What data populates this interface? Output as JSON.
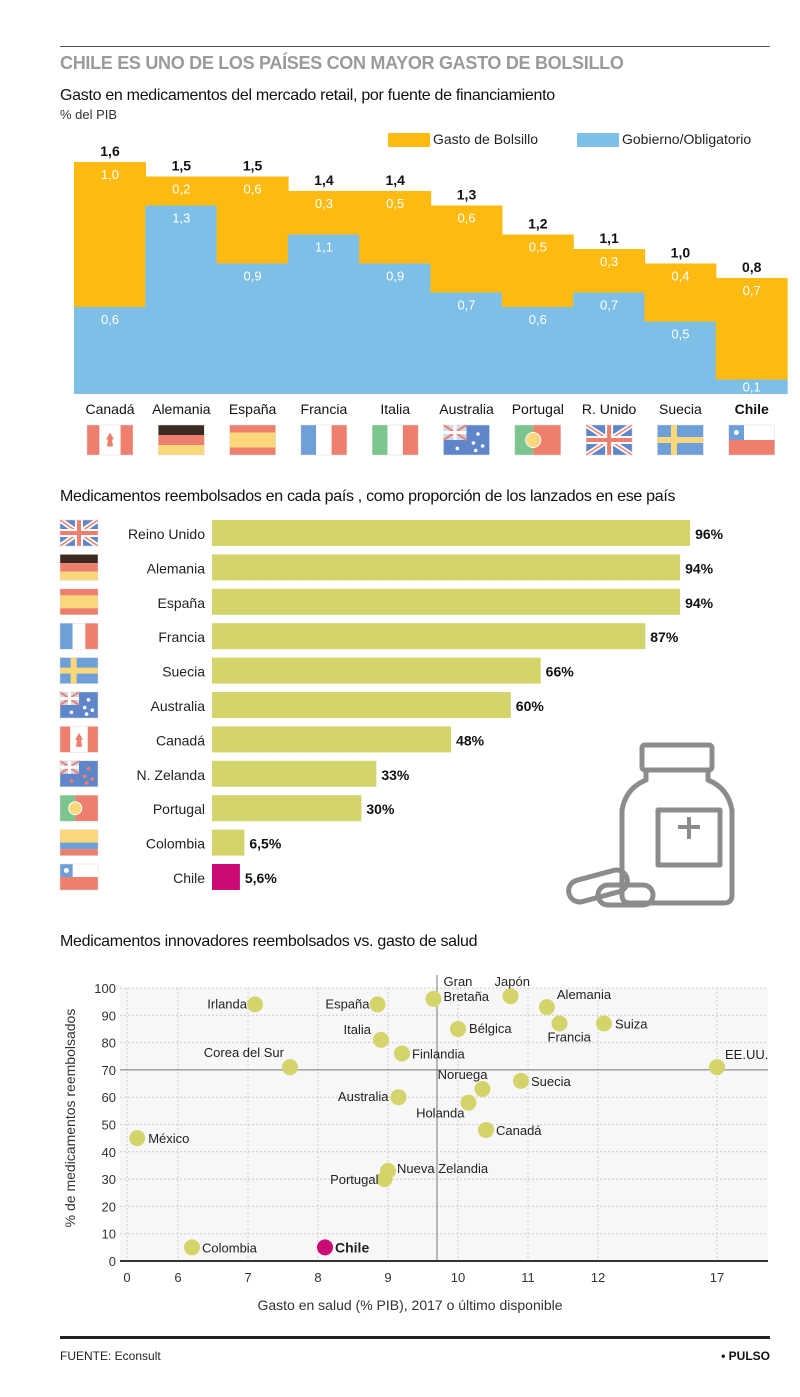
{
  "headline": "CHILE ES UNO DE LOS PAÍSES CON MAYOR GASTO DE BOLSILLO",
  "colors": {
    "bolsillo": "#FDBB12",
    "gobierno": "#7DBFE6",
    "reimb": "#D3D46A",
    "chile": "#CC0A76",
    "dot": "#D3D46A"
  },
  "chart_data": [
    {
      "type": "bar",
      "stacked": true,
      "title": "Gasto en medicamentos del mercado retail, por fuente de financiamiento",
      "subtitle": "% del PIB",
      "legend_position": "top-right",
      "categories": [
        "Canadá",
        "Alemania",
        "España",
        "Francia",
        "Italia",
        "Australia",
        "Portugal",
        "R. Unido",
        "Suecia",
        "Chile"
      ],
      "flags": [
        "canada",
        "germany",
        "spain",
        "france",
        "italy",
        "australia",
        "portugal",
        "uk",
        "sweden",
        "chile"
      ],
      "totals": [
        "1,6",
        "1,5",
        "1,5",
        "1,4",
        "1,4",
        "1,3",
        "1,2",
        "1,1",
        "1,0",
        "0,8"
      ],
      "series": [
        {
          "name": "Gobierno/Obligatorio",
          "values": [
            0.6,
            1.3,
            0.9,
            1.1,
            0.9,
            0.7,
            0.6,
            0.7,
            0.5,
            0.1
          ],
          "labels": [
            "0,6",
            "1,3",
            "0,9",
            "1,1",
            "0,9",
            "0,7",
            "0,6",
            "0,7",
            "0,5",
            "0,1"
          ]
        },
        {
          "name": "Gasto de Bolsillo",
          "values": [
            1.0,
            0.2,
            0.6,
            0.3,
            0.5,
            0.6,
            0.5,
            0.3,
            0.4,
            0.7
          ],
          "labels": [
            "1,0",
            "0,2",
            "0,6",
            "0,3",
            "0,5",
            "0,6",
            "0,5",
            "0,3",
            "0,4",
            "0,7"
          ]
        }
      ],
      "total_values": [
        1.6,
        1.5,
        1.5,
        1.4,
        1.4,
        1.3,
        1.2,
        1.1,
        1.0,
        0.8
      ],
      "highlight": "Chile"
    },
    {
      "type": "bar",
      "orientation": "horizontal",
      "title": "Medicamentos reembolsados en cada país , como proporción de los lanzados en ese país",
      "categories": [
        "Reino Unido",
        "Alemania",
        "España",
        "Francia",
        "Suecia",
        "Australia",
        "Canadá",
        "N. Zelanda",
        "Portugal",
        "Colombia",
        "Chile"
      ],
      "flags": [
        "uk",
        "germany",
        "spain",
        "france",
        "sweden",
        "australia",
        "canada",
        "nz",
        "portugal",
        "colombia",
        "chile"
      ],
      "values": [
        96,
        94,
        94,
        87,
        66,
        60,
        48,
        33,
        30,
        6.5,
        5.6
      ],
      "labels": [
        "96%",
        "94%",
        "94%",
        "87%",
        "66%",
        "60%",
        "48%",
        "33%",
        "30%",
        "6,5%",
        "5,6%"
      ],
      "highlight": "Chile"
    },
    {
      "type": "scatter",
      "title": "Medicamentos innovadores reembolsados vs. gasto de salud",
      "xlabel": "Gasto en salud (% PIB), 2017 o último disponible",
      "ylabel": "% de medicamentos reembolsados",
      "xticks": [
        "0",
        "6",
        "7",
        "8",
        "9",
        "10",
        "11",
        "12",
        "17"
      ],
      "yticks": [
        "0",
        "10",
        "20",
        "30",
        "40",
        "50",
        "60",
        "70",
        "80",
        "90",
        "100"
      ],
      "ylim": [
        0,
        100
      ],
      "grid": true,
      "reference_lines": {
        "x": 9.7,
        "y": 70
      },
      "points": [
        {
          "name": "Irlanda",
          "x": 7.1,
          "y": 94
        },
        {
          "name": "España",
          "x": 8.85,
          "y": 94
        },
        {
          "name": "Gran Bretaña",
          "x": 9.65,
          "y": 96
        },
        {
          "name": "Japón",
          "x": 10.75,
          "y": 97
        },
        {
          "name": "Alemania",
          "x": 11.27,
          "y": 93
        },
        {
          "name": "Bélgica",
          "x": 10.0,
          "y": 85
        },
        {
          "name": "Francia",
          "x": 11.45,
          "y": 87
        },
        {
          "name": "Suiza",
          "x": 12.25,
          "y": 87
        },
        {
          "name": "Italia",
          "x": 8.9,
          "y": 81
        },
        {
          "name": "Finlandia",
          "x": 9.2,
          "y": 76
        },
        {
          "name": "Corea del Sur",
          "x": 7.6,
          "y": 71
        },
        {
          "name": "EE.UU.",
          "x": 17.0,
          "y": 71
        },
        {
          "name": "Noruega",
          "x": 10.35,
          "y": 63
        },
        {
          "name": "Suecia",
          "x": 10.9,
          "y": 66
        },
        {
          "name": "Australia",
          "x": 9.15,
          "y": 60
        },
        {
          "name": "Holanda",
          "x": 10.15,
          "y": 58
        },
        {
          "name": "Canadá",
          "x": 10.4,
          "y": 48
        },
        {
          "name": "México",
          "x": 1.2,
          "y": 45
        },
        {
          "name": "Nueva Zelandia",
          "x": 9.0,
          "y": 33
        },
        {
          "name": "Portugal",
          "x": 8.95,
          "y": 30
        },
        {
          "name": "Colombia",
          "x": 6.2,
          "y": 5
        },
        {
          "name": "Chile",
          "x": 8.1,
          "y": 5
        }
      ],
      "highlight": "Chile"
    }
  ],
  "source": "FUENTE: Econsult",
  "brand": "• PULSO",
  "icons": {
    "illustration": "pill-bottle-icon"
  }
}
